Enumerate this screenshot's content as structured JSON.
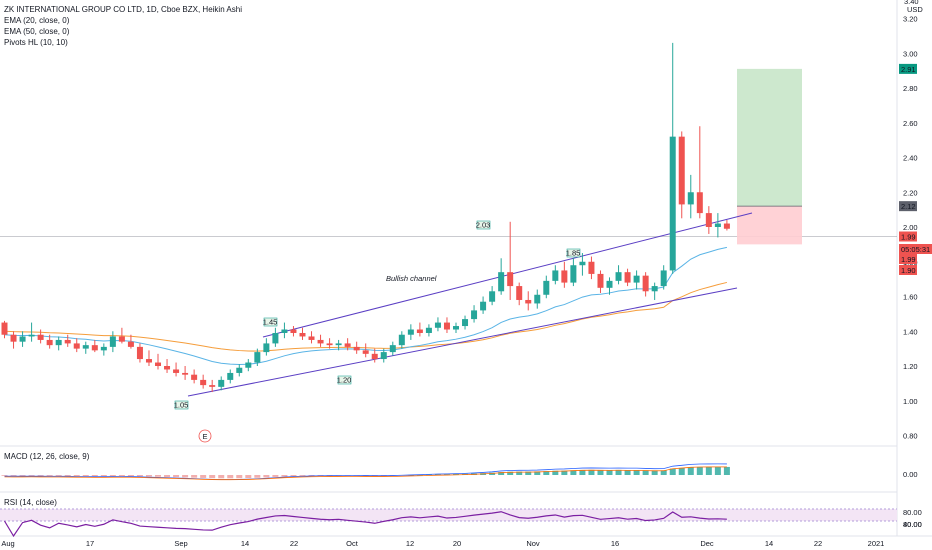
{
  "header": {
    "title": "ZK INTERNATIONAL GROUP CO LTD, 1D, Cboe BZX, Heikin Ashi",
    "indicators": [
      "EMA (20, close, 0)",
      "EMA (50, close, 0)",
      "Pivots HL (10, 10)"
    ]
  },
  "price_axis": {
    "currency": "USD",
    "top_partial": "3.40",
    "ticks": [
      "3.20",
      "3.00",
      "2.80",
      "2.60",
      "2.40",
      "2.20",
      "2.00",
      "1.80",
      "1.60",
      "1.40",
      "1.20",
      "1.00",
      "0.80"
    ],
    "tags": [
      {
        "text": "2.91",
        "bg": "#089981",
        "fg": "#ffffff"
      },
      {
        "text": "2.12",
        "bg": "#5d606b",
        "fg": "#ffffff"
      },
      {
        "text": "1.99",
        "bg": "#ef5350",
        "fg": "#ffffff"
      },
      {
        "text": "05:05:31",
        "bg": "#ef5350",
        "fg": "#ffffff"
      },
      {
        "text": "1.99",
        "bg": "#ef5350",
        "fg": "#ffffff"
      },
      {
        "text": "1.90",
        "bg": "#ef5350",
        "fg": "#ffffff"
      }
    ]
  },
  "date_axis": [
    "Aug",
    "17",
    "Sep",
    "14",
    "22",
    "Oct",
    "12",
    "20",
    "Nov",
    "16",
    "Dec",
    "14",
    "22",
    "2021"
  ],
  "annotations": {
    "channel_label": "Bullish channel",
    "pivots": [
      "1.45",
      "1.05",
      "1.20",
      "2.03",
      "1.85"
    ],
    "earnings_marker": "E"
  },
  "macd": {
    "label": "MACD (12, 26, close, 9)",
    "ticks": [
      "0.00"
    ]
  },
  "rsi": {
    "label": "RSI (14, close)",
    "ticks": [
      "80.00",
      "40.00"
    ]
  },
  "colors": {
    "up": "#26a69a",
    "down": "#ef5350",
    "ema20": "#5ab4e6",
    "ema50": "#f59d3b",
    "channel": "#5b3fc4",
    "rsi_line": "#7b1fa2",
    "rsi_band": "#f3e5f5",
    "target_zone": "#c8e6c9",
    "stop_zone": "#ffcdd2"
  },
  "chart_data": {
    "type": "candlestick",
    "title": "ZK INTERNATIONAL GROUP CO LTD, 1D, Cboe BZX, Heikin Ashi",
    "ylim": [
      0.78,
      3.42
    ],
    "candles": [
      [
        1.45,
        1.46,
        1.36,
        1.38
      ],
      [
        1.38,
        1.4,
        1.3,
        1.34
      ],
      [
        1.34,
        1.4,
        1.31,
        1.37
      ],
      [
        1.37,
        1.45,
        1.34,
        1.38
      ],
      [
        1.38,
        1.41,
        1.33,
        1.35
      ],
      [
        1.35,
        1.38,
        1.3,
        1.32
      ],
      [
        1.32,
        1.37,
        1.29,
        1.35
      ],
      [
        1.35,
        1.38,
        1.31,
        1.33
      ],
      [
        1.33,
        1.36,
        1.28,
        1.3
      ],
      [
        1.3,
        1.34,
        1.27,
        1.32
      ],
      [
        1.32,
        1.35,
        1.28,
        1.29
      ],
      [
        1.29,
        1.33,
        1.26,
        1.31
      ],
      [
        1.31,
        1.4,
        1.28,
        1.37
      ],
      [
        1.37,
        1.42,
        1.33,
        1.34
      ],
      [
        1.34,
        1.38,
        1.3,
        1.31
      ],
      [
        1.31,
        1.33,
        1.22,
        1.24
      ],
      [
        1.24,
        1.29,
        1.2,
        1.22
      ],
      [
        1.22,
        1.27,
        1.18,
        1.2
      ],
      [
        1.2,
        1.24,
        1.16,
        1.18
      ],
      [
        1.18,
        1.22,
        1.14,
        1.16
      ],
      [
        1.16,
        1.2,
        1.12,
        1.15
      ],
      [
        1.15,
        1.18,
        1.1,
        1.12
      ],
      [
        1.12,
        1.15,
        1.07,
        1.09
      ],
      [
        1.09,
        1.12,
        1.05,
        1.08
      ],
      [
        1.08,
        1.14,
        1.06,
        1.12
      ],
      [
        1.12,
        1.18,
        1.1,
        1.16
      ],
      [
        1.16,
        1.21,
        1.14,
        1.19
      ],
      [
        1.19,
        1.24,
        1.17,
        1.22
      ],
      [
        1.22,
        1.3,
        1.2,
        1.28
      ],
      [
        1.28,
        1.36,
        1.26,
        1.33
      ],
      [
        1.33,
        1.42,
        1.31,
        1.39
      ],
      [
        1.39,
        1.45,
        1.36,
        1.41
      ],
      [
        1.41,
        1.43,
        1.37,
        1.39
      ],
      [
        1.39,
        1.42,
        1.35,
        1.37
      ],
      [
        1.37,
        1.4,
        1.33,
        1.35
      ],
      [
        1.35,
        1.38,
        1.31,
        1.33
      ],
      [
        1.33,
        1.36,
        1.3,
        1.32
      ],
      [
        1.32,
        1.35,
        1.29,
        1.33
      ],
      [
        1.33,
        1.36,
        1.29,
        1.31
      ],
      [
        1.31,
        1.34,
        1.27,
        1.29
      ],
      [
        1.29,
        1.33,
        1.25,
        1.27
      ],
      [
        1.27,
        1.3,
        1.22,
        1.24
      ],
      [
        1.24,
        1.3,
        1.22,
        1.28
      ],
      [
        1.28,
        1.34,
        1.26,
        1.32
      ],
      [
        1.32,
        1.4,
        1.3,
        1.38
      ],
      [
        1.38,
        1.44,
        1.35,
        1.41
      ],
      [
        1.41,
        1.45,
        1.37,
        1.39
      ],
      [
        1.39,
        1.44,
        1.37,
        1.42
      ],
      [
        1.42,
        1.48,
        1.4,
        1.45
      ],
      [
        1.45,
        1.48,
        1.39,
        1.41
      ],
      [
        1.41,
        1.45,
        1.39,
        1.43
      ],
      [
        1.43,
        1.49,
        1.41,
        1.47
      ],
      [
        1.47,
        1.55,
        1.45,
        1.52
      ],
      [
        1.52,
        1.6,
        1.5,
        1.57
      ],
      [
        1.57,
        1.66,
        1.55,
        1.63
      ],
      [
        1.63,
        1.82,
        1.61,
        1.74
      ],
      [
        1.74,
        2.03,
        1.58,
        1.66
      ],
      [
        1.66,
        1.68,
        1.55,
        1.58
      ],
      [
        1.58,
        1.63,
        1.52,
        1.56
      ],
      [
        1.56,
        1.64,
        1.53,
        1.61
      ],
      [
        1.61,
        1.72,
        1.59,
        1.69
      ],
      [
        1.69,
        1.78,
        1.67,
        1.75
      ],
      [
        1.75,
        1.8,
        1.65,
        1.68
      ],
      [
        1.68,
        1.82,
        1.66,
        1.78
      ],
      [
        1.78,
        1.85,
        1.72,
        1.8
      ],
      [
        1.8,
        1.83,
        1.7,
        1.73
      ],
      [
        1.73,
        1.75,
        1.62,
        1.65
      ],
      [
        1.65,
        1.71,
        1.61,
        1.69
      ],
      [
        1.69,
        1.78,
        1.67,
        1.74
      ],
      [
        1.74,
        1.76,
        1.66,
        1.68
      ],
      [
        1.68,
        1.75,
        1.64,
        1.72
      ],
      [
        1.72,
        1.74,
        1.6,
        1.63
      ],
      [
        1.63,
        1.68,
        1.58,
        1.66
      ],
      [
        1.66,
        1.78,
        1.64,
        1.75
      ],
      [
        1.75,
        3.06,
        1.73,
        2.52
      ],
      [
        2.52,
        2.55,
        2.05,
        2.13
      ],
      [
        2.13,
        2.3,
        2.05,
        2.2
      ],
      [
        2.2,
        2.58,
        2.05,
        2.08
      ],
      [
        2.08,
        2.12,
        1.96,
        2.0
      ],
      [
        2.0,
        2.08,
        1.94,
        2.02
      ],
      [
        2.02,
        2.04,
        1.98,
        1.99
      ]
    ]
  }
}
